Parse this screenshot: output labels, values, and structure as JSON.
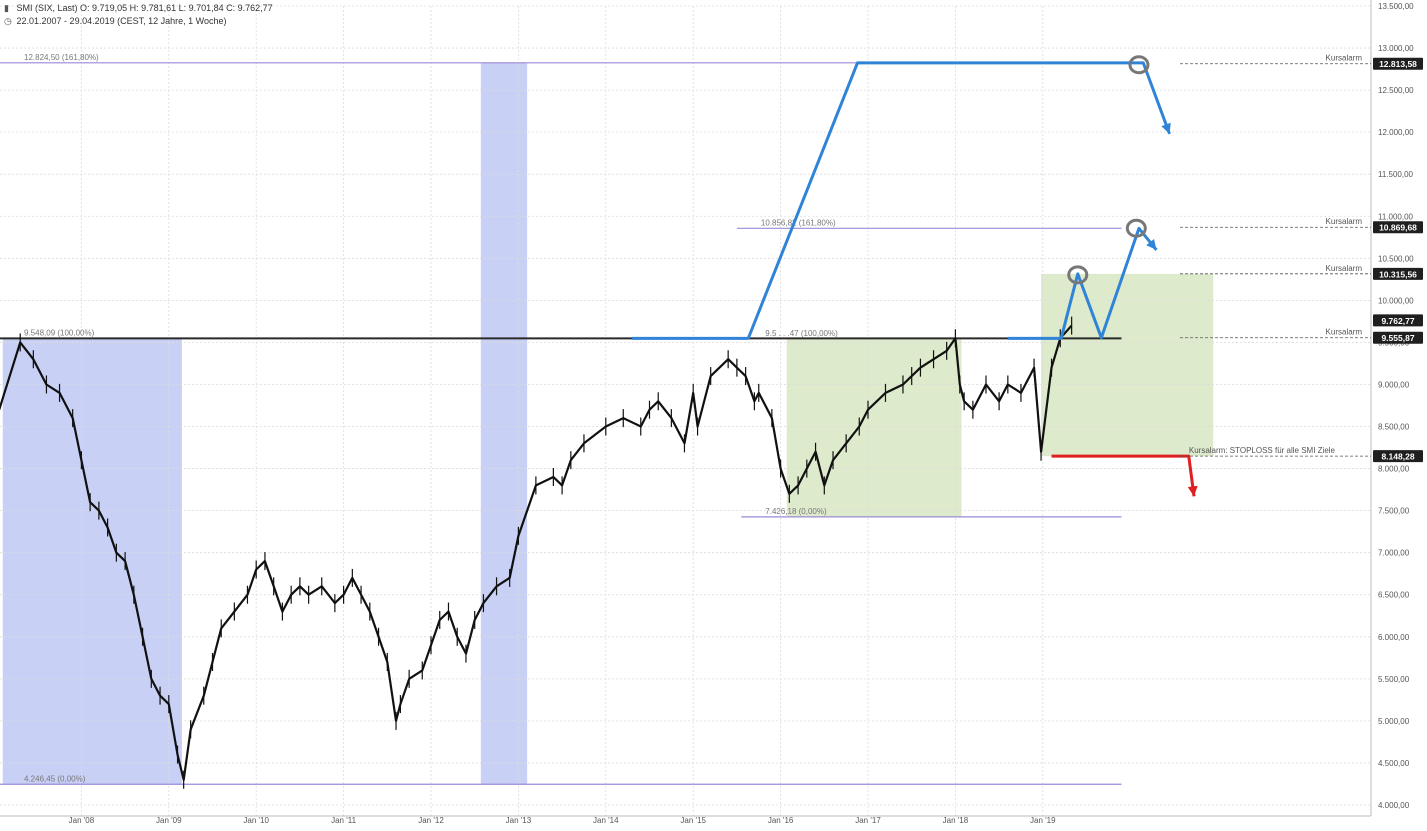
{
  "header": {
    "instrument": "SMI (SIX, Last)",
    "ohlc": "O: 9.719,05  H: 9.781,61  L: 9.701,84  C: 9.762,77",
    "range": "22.01.2007 - 29.04.2019",
    "timeframe": "(CEST, 12 Jahre, 1 Woche)",
    "icons": [
      "candle-icon",
      "clock-icon"
    ]
  },
  "chart_data": {
    "type": "line",
    "x_range": [
      "2007-01-22",
      "2019-04-29"
    ],
    "ylim": [
      4000,
      13500
    ],
    "y_ticks": [
      "13.500,00",
      "13.000,00",
      "12.500,00",
      "12.000,00",
      "11.500,00",
      "11.000,00",
      "10.500,00",
      "10.000,00",
      "9.500,00",
      "9.000,00",
      "8.500,00",
      "8.000,00",
      "7.500,00",
      "7.000,00",
      "6.500,00",
      "6.000,00",
      "5.500,00",
      "5.000,00",
      "4.500,00",
      "4.000,00"
    ],
    "y_tick_values": [
      13500,
      13000,
      12500,
      12000,
      11500,
      11000,
      10500,
      10000,
      9500,
      9000,
      8500,
      8000,
      7500,
      7000,
      6500,
      6000,
      5500,
      5000,
      4500,
      4000
    ],
    "x_ticks": [
      {
        "label": "Jan '08",
        "x": 2008.0
      },
      {
        "label": "Jan '09",
        "x": 2009.0
      },
      {
        "label": "Jan '10",
        "x": 2010.0
      },
      {
        "label": "Jan '11",
        "x": 2011.0
      },
      {
        "label": "Jan '12",
        "x": 2012.0
      },
      {
        "label": "Jan '13",
        "x": 2013.0
      },
      {
        "label": "Jan '14",
        "x": 2014.0
      },
      {
        "label": "Jan '15",
        "x": 2015.0
      },
      {
        "label": "Jan '16",
        "x": 2016.0
      },
      {
        "label": "Jan '17",
        "x": 2017.0
      },
      {
        "label": "Jan '18",
        "x": 2018.0
      },
      {
        "label": "Jan '19",
        "x": 2019.0
      }
    ],
    "grid": true,
    "series": [
      {
        "color": "#111111",
        "x": [
          2007.06,
          2007.3,
          2007.45,
          2007.6,
          2007.75,
          2007.9,
          2008.0,
          2008.1,
          2008.2,
          2008.3,
          2008.4,
          2008.5,
          2008.6,
          2008.7,
          2008.8,
          2008.9,
          2009.0,
          2009.1,
          2009.17,
          2009.25,
          2009.4,
          2009.5,
          2009.6,
          2009.75,
          2009.9,
          2010.0,
          2010.1,
          2010.2,
          2010.3,
          2010.4,
          2010.5,
          2010.6,
          2010.75,
          2010.9,
          2011.0,
          2011.1,
          2011.2,
          2011.3,
          2011.4,
          2011.5,
          2011.6,
          2011.65,
          2011.75,
          2011.9,
          2012.0,
          2012.1,
          2012.2,
          2012.3,
          2012.4,
          2012.5,
          2012.6,
          2012.75,
          2012.9,
          2013.0,
          2013.2,
          2013.4,
          2013.5,
          2013.6,
          2013.75,
          2014.0,
          2014.2,
          2014.4,
          2014.5,
          2014.6,
          2014.75,
          2014.9,
          2015.0,
          2015.05,
          2015.2,
          2015.4,
          2015.5,
          2015.6,
          2015.7,
          2015.75,
          2015.9,
          2016.0,
          2016.1,
          2016.2,
          2016.3,
          2016.4,
          2016.5,
          2016.6,
          2016.75,
          2016.9,
          2017.0,
          2017.2,
          2017.4,
          2017.5,
          2017.6,
          2017.75,
          2017.9,
          2018.0,
          2018.05,
          2018.1,
          2018.2,
          2018.35,
          2018.5,
          2018.6,
          2018.75,
          2018.9,
          2018.98,
          2019.1,
          2019.2,
          2019.33
        ],
        "y": [
          8700,
          9500,
          9300,
          9000,
          8900,
          8600,
          8100,
          7600,
          7500,
          7300,
          7000,
          6900,
          6500,
          6000,
          5500,
          5300,
          5200,
          4600,
          4300,
          4900,
          5300,
          5700,
          6100,
          6300,
          6500,
          6800,
          6900,
          6600,
          6300,
          6500,
          6600,
          6500,
          6600,
          6400,
          6500,
          6700,
          6500,
          6300,
          6000,
          5700,
          5000,
          5200,
          5500,
          5600,
          5900,
          6200,
          6300,
          6000,
          5800,
          6200,
          6400,
          6600,
          6700,
          7200,
          7800,
          7900,
          7800,
          8100,
          8300,
          8500,
          8600,
          8500,
          8700,
          8800,
          8600,
          8300,
          8900,
          8500,
          9100,
          9300,
          9200,
          9100,
          8800,
          8900,
          8600,
          8000,
          7700,
          7800,
          8000,
          8200,
          7800,
          8100,
          8300,
          8500,
          8700,
          8900,
          9000,
          9100,
          9200,
          9300,
          9400,
          9550,
          9000,
          8800,
          8700,
          9000,
          8800,
          9000,
          8900,
          9200,
          8200,
          9200,
          9550,
          9700
        ]
      }
    ],
    "fib_lines": [
      {
        "label": "12.824,50 (161,80%)",
        "value": 12824.5,
        "x_from": 2007.0,
        "x_to": 2019.9
      },
      {
        "label": "10.856,82 (161,80%)",
        "value": 10856.82,
        "x_from": 2015.5,
        "x_to": 2019.9
      },
      {
        "label": "9.548,09 (100,00%)",
        "value": 9548.09,
        "x_from": 2007.0,
        "x_to": 2019.9
      },
      {
        "label": "9.5 . . .47 (100,00%)",
        "value": 9540,
        "x_from": 2015.55,
        "x_to": 2015.6
      },
      {
        "label": "7.426,18 (0,00%)",
        "value": 7426.18,
        "x_from": 2015.55,
        "x_to": 2019.9
      },
      {
        "label": "4.246,45 (0,00%)",
        "value": 4246.45,
        "x_from": 2007.0,
        "x_to": 2019.9
      }
    ],
    "alerts": [
      {
        "label": "Kursalarm",
        "price": "12.813,58",
        "value": 12813.58
      },
      {
        "label": "Kursalarm",
        "price": "10.869,68",
        "value": 10869.68
      },
      {
        "label": "Kursalarm",
        "price": "10.315,56",
        "value": 10315.56
      },
      {
        "label": "Kursalarm",
        "price": "9.555,87",
        "value": 9555.87
      },
      {
        "label": "Kursalarm: STOPLOSS für alle SMI Ziele",
        "price": "8.148,28",
        "value": 8148.28
      }
    ],
    "last_price": {
      "price": "9.762,77",
      "value": 9762.77
    },
    "shaded_regions": [
      {
        "color": "#c5cdf4",
        "x_from": 2007.1,
        "x_to": 2009.15,
        "y_from": 4246,
        "y_to": 9548
      },
      {
        "color": "#c5cdf4",
        "x_from": 2012.57,
        "x_to": 2013.1,
        "y_from": 4246,
        "y_to": 12824
      },
      {
        "color": "#dbe9c8",
        "x_from": 2016.07,
        "x_to": 2018.07,
        "y_from": 7426,
        "y_to": 9548
      },
      {
        "color": "#dbe9c8",
        "x_from": 2018.98,
        "x_to": 2020.95,
        "y_from": 8148,
        "y_to": 10315
      }
    ],
    "projection_paths": [
      {
        "color": "#2f84d8",
        "points": [
          [
            2014.3,
            9548
          ],
          [
            2015.63,
            9548
          ],
          [
            2016.88,
            12824
          ],
          [
            2020.15,
            12824
          ],
          [
            2020.45,
            11980
          ]
        ]
      },
      {
        "color": "#2f84d8",
        "points": [
          [
            2018.6,
            9548
          ],
          [
            2019.21,
            9548
          ],
          [
            2019.4,
            10315
          ],
          [
            2019.67,
            9555
          ],
          [
            2020.1,
            10856
          ],
          [
            2020.3,
            10600
          ]
        ]
      },
      {
        "color": "#e02020",
        "points": [
          [
            2019.1,
            8148
          ],
          [
            2020.67,
            8148
          ],
          [
            2020.73,
            7670
          ]
        ]
      }
    ],
    "circles": [
      {
        "x": 2020.1,
        "value": 12813.58
      },
      {
        "x": 2020.07,
        "value": 10869.68
      },
      {
        "x": 2019.4,
        "value": 10315.56
      }
    ],
    "colors": {
      "fib_line": "#9b89d8",
      "level_line": "#2a2a2a",
      "blue_path": "#2f84d8",
      "stop_path": "#e02020",
      "badge_bg": "#1f1f1f",
      "badge_text": "#ffffff",
      "grid": "#dcdcdc"
    }
  }
}
